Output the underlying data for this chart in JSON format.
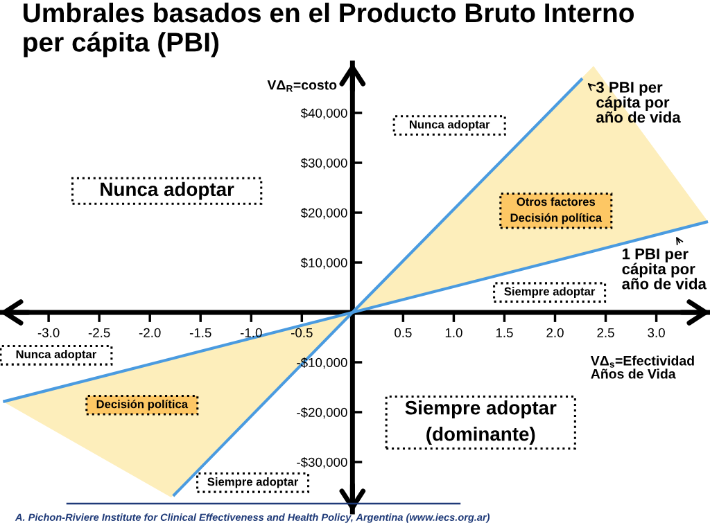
{
  "chart_data": {
    "type": "line",
    "title": "Umbrales basados en el Producto Bruto Interno\nper cápita (PBI)",
    "xlabel": "VΔ$_{s}$=Efectividad\nAños de Vida",
    "ylabel": "VΔ$_{R}$=costo",
    "xlim": [
      -3.48,
      3.53
    ],
    "ylim": [
      -40000,
      50000
    ],
    "xticks": [
      {
        "value": -3,
        "label": "-3.0"
      },
      -2.5,
      {
        "value": -2,
        "label": "-2.0"
      },
      -1.5,
      {
        "value": -1,
        "label": "-1.0"
      },
      -0.5,
      0.5,
      {
        "value": 1,
        "label": "1.0"
      },
      1.5,
      {
        "value": 2,
        "label": "2.0"
      },
      2.5,
      {
        "value": 3,
        "label": "3.0"
      }
    ],
    "yticks": [
      {
        "value": -30000,
        "label": "-$30,000"
      },
      {
        "value": -20000,
        "label": "-$20,000"
      },
      {
        "value": -10000,
        "label": "-$10,000"
      },
      {
        "value": 10000,
        "label": "$10,000"
      },
      {
        "value": 20000,
        "label": "$20,000"
      },
      {
        "value": 30000,
        "label": "$30,000"
      },
      {
        "value": 40000,
        "label": "$40,000"
      }
    ],
    "series": [
      {
        "name": "3 PBI per\ncápita por\naño de vida",
        "color": "#4a9be0",
        "x": [
          -1.77,
          0,
          2.27
        ],
        "values": [
          -36800,
          0,
          46900
        ]
      },
      {
        "name": "1 PBI per\ncápita por\naño de vida",
        "color": "#4a9be0",
        "x": [
          -3.45,
          -1.79,
          0,
          2.38,
          3.51
        ],
        "values": [
          -17900,
          -9300,
          0,
          12300,
          18200
        ],
        "lower": [
          -17900,
          -37100,
          0,
          12300,
          18200
        ],
        "upper": [
          -17900,
          -9300,
          0,
          49400,
          18200
        ]
      }
    ],
    "annotations": [
      "Nunca adoptar",
      "Nunca adoptar",
      "Nunca adoptar",
      "Otros factores\nDecisión política",
      "Siempre adoptar",
      "Decisión política",
      "Siempre adoptar\n(dominante)",
      "Siempre adoptar",
      "A. Pichon-Riviere Institute for Clinical Effectiveness and Health Policy, Argentina (www.iecs.org.ar)"
    ]
  }
}
